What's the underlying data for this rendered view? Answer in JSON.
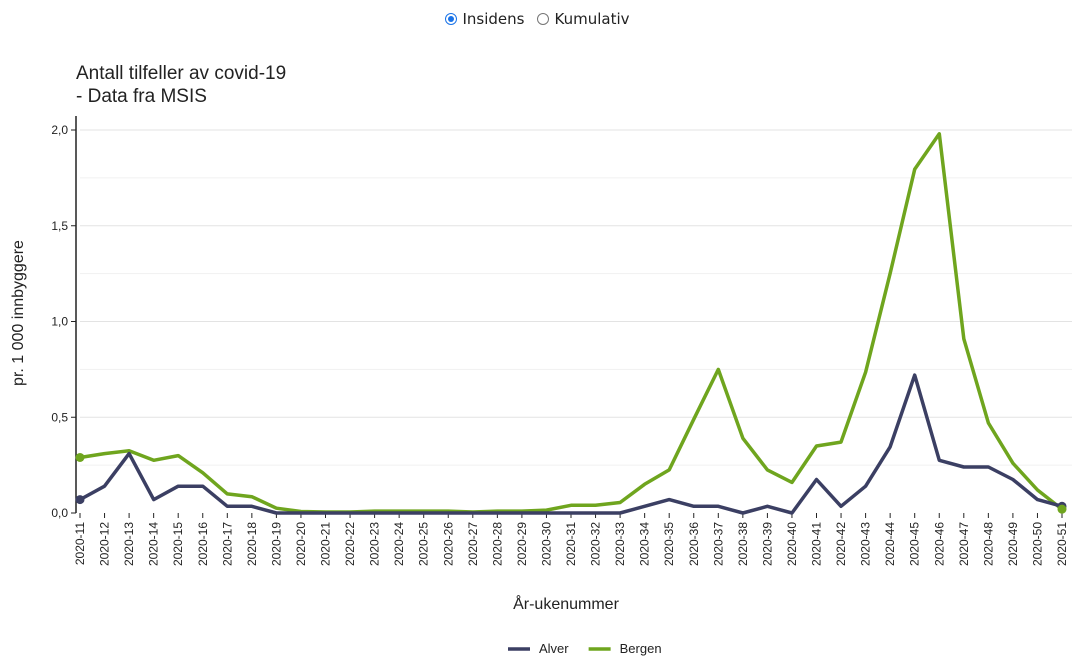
{
  "controls": {
    "options": [
      {
        "label": "Insidens",
        "selected": true
      },
      {
        "label": "Kumulativ",
        "selected": false
      }
    ]
  },
  "chart_data": {
    "type": "line",
    "title": [
      "Antall tilfeller av covid-19",
      "- Data fra MSIS"
    ],
    "xlabel": "År-ukenummer",
    "ylabel": "pr. 1 000 innbyggere",
    "ylim": [
      0,
      2.0
    ],
    "yticks": [
      "0,0",
      "0,5",
      "1,0",
      "1,5",
      "2,0"
    ],
    "grid": true,
    "legend_position": "bottom",
    "x": [
      "2020-11",
      "2020-12",
      "2020-13",
      "2020-14",
      "2020-15",
      "2020-16",
      "2020-17",
      "2020-18",
      "2020-19",
      "2020-20",
      "2020-21",
      "2020-22",
      "2020-23",
      "2020-24",
      "2020-25",
      "2020-26",
      "2020-27",
      "2020-28",
      "2020-29",
      "2020-30",
      "2020-31",
      "2020-32",
      "2020-33",
      "2020-34",
      "2020-35",
      "2020-36",
      "2020-37",
      "2020-38",
      "2020-39",
      "2020-40",
      "2020-41",
      "2020-42",
      "2020-43",
      "2020-44",
      "2020-45",
      "2020-46",
      "2020-47",
      "2020-48",
      "2020-49",
      "2020-50",
      "2020-51"
    ],
    "series": [
      {
        "name": "Alver",
        "color": "#3b3f63",
        "values": [
          0.07,
          0.14,
          0.31,
          0.07,
          0.14,
          0.14,
          0.035,
          0.035,
          0.0,
          0.0,
          0.0,
          0.0,
          0.0,
          0.0,
          0.0,
          0.0,
          0.0,
          0.0,
          0.0,
          0.0,
          0.0,
          0.0,
          0.0,
          0.035,
          0.07,
          0.035,
          0.035,
          0.0,
          0.035,
          0.0,
          0.175,
          0.035,
          0.14,
          0.345,
          0.72,
          0.275,
          0.24,
          0.24,
          0.175,
          0.07,
          0.035
        ]
      },
      {
        "name": "Bergen",
        "color": "#6fa51e",
        "values": [
          0.29,
          0.31,
          0.325,
          0.275,
          0.3,
          0.21,
          0.1,
          0.085,
          0.025,
          0.008,
          0.005,
          0.005,
          0.01,
          0.01,
          0.01,
          0.01,
          0.005,
          0.01,
          0.01,
          0.015,
          0.04,
          0.04,
          0.055,
          0.15,
          0.225,
          0.49,
          0.75,
          0.39,
          0.225,
          0.16,
          0.35,
          0.37,
          0.735,
          1.25,
          1.795,
          1.98,
          0.91,
          0.47,
          0.26,
          0.12,
          0.02
        ]
      }
    ]
  }
}
